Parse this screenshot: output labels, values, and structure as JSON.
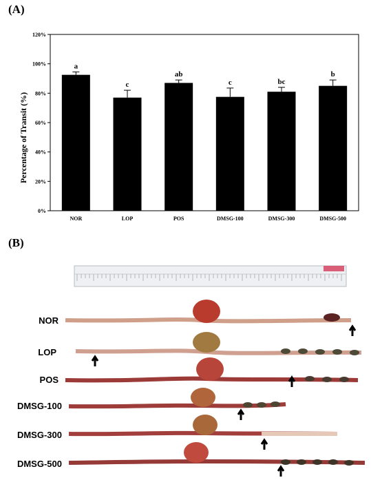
{
  "panel_a_label": "(A)",
  "panel_b_label": "(B)",
  "chart_data": {
    "type": "bar",
    "title": "",
    "xlabel": "",
    "ylabel": "Percentage of Transit (%)",
    "ylim": [
      0,
      120
    ],
    "yticks": [
      "0%",
      "20%",
      "40%",
      "60%",
      "80%",
      "100%",
      "120%"
    ],
    "categories": [
      "NOR",
      "LOP",
      "POS",
      "DMSG-100",
      "DMSG-300",
      "DMSG-500"
    ],
    "values": [
      92.5,
      77,
      87,
      77.5,
      81,
      85
    ],
    "errors": [
      2,
      5,
      2,
      6,
      3,
      4
    ],
    "significance": [
      "a",
      "c",
      "ab",
      "c",
      "bc",
      "b"
    ],
    "bar_color": "#000000",
    "grid": false
  },
  "photo": {
    "row_labels": [
      "NOR",
      "LOP",
      "POS",
      "DMSG-100",
      "DMSG-300",
      "DMSG-500"
    ]
  }
}
